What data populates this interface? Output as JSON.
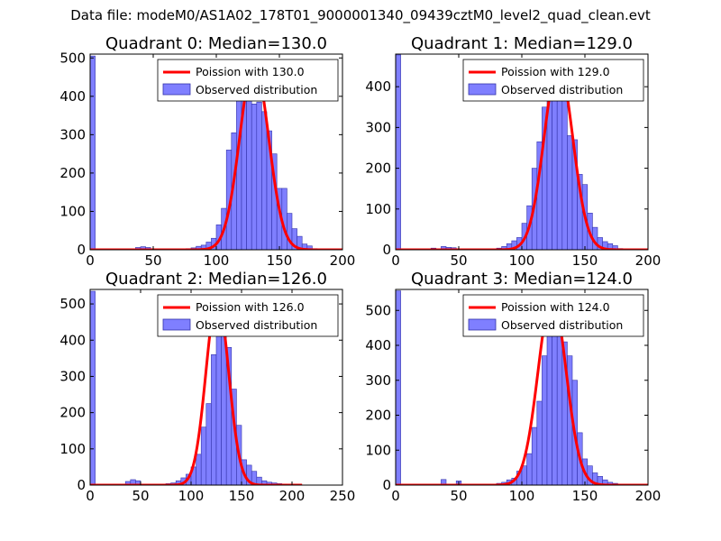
{
  "figure": {
    "suptitle": "Data file: modeM0/AS1A02_178T01_9000001340_09439cztM0_level2_quad_clean.evt",
    "colors": {
      "hist_fill": "#7f7fff",
      "hist_edge": "#3333aa",
      "poisson_line": "#ff0000"
    }
  },
  "chart_data": [
    {
      "type": "bar",
      "title": "Quadrant 0: Median=130.0",
      "median": 130.0,
      "legend": {
        "line_label": "Poission with 130.0",
        "bar_label": "Observed distribution",
        "placement": "top-right"
      },
      "xlim": [
        0,
        200
      ],
      "ylim": [
        0,
        510
      ],
      "xticks": [
        0,
        50,
        100,
        150,
        200
      ],
      "yticks": [
        0,
        100,
        200,
        300,
        400,
        500
      ],
      "bin_width": 4,
      "bins": [
        [
          0,
          505
        ],
        [
          36,
          6
        ],
        [
          40,
          8
        ],
        [
          44,
          6
        ],
        [
          76,
          3
        ],
        [
          80,
          5
        ],
        [
          84,
          9
        ],
        [
          88,
          12
        ],
        [
          92,
          20
        ],
        [
          96,
          30
        ],
        [
          100,
          65
        ],
        [
          104,
          108
        ],
        [
          108,
          260
        ],
        [
          112,
          305
        ],
        [
          116,
          420
        ],
        [
          120,
          460
        ],
        [
          124,
          480
        ],
        [
          128,
          380
        ],
        [
          132,
          385
        ],
        [
          136,
          360
        ],
        [
          140,
          310
        ],
        [
          144,
          250
        ],
        [
          148,
          160
        ],
        [
          152,
          160
        ],
        [
          156,
          95
        ],
        [
          160,
          55
        ],
        [
          164,
          35
        ],
        [
          168,
          15
        ],
        [
          172,
          10
        ],
        [
          176,
          3
        ]
      ],
      "poisson": {
        "mean": 130.0,
        "peak": 487,
        "x": [
          0,
          200
        ]
      }
    },
    {
      "type": "bar",
      "title": "Quadrant 1: Median=129.0",
      "median": 129.0,
      "legend": {
        "line_label": "Poission with 129.0",
        "bar_label": "Observed distribution",
        "placement": "top-right"
      },
      "xlim": [
        0,
        200
      ],
      "ylim": [
        0,
        480
      ],
      "xticks": [
        0,
        50,
        100,
        150,
        200
      ],
      "yticks": [
        0,
        100,
        200,
        300,
        400
      ],
      "bin_width": 4,
      "bins": [
        [
          0,
          478
        ],
        [
          28,
          4
        ],
        [
          36,
          8
        ],
        [
          40,
          6
        ],
        [
          44,
          5
        ],
        [
          76,
          2
        ],
        [
          80,
          4
        ],
        [
          84,
          8
        ],
        [
          88,
          15
        ],
        [
          92,
          22
        ],
        [
          96,
          30
        ],
        [
          100,
          65
        ],
        [
          104,
          108
        ],
        [
          108,
          200
        ],
        [
          112,
          265
        ],
        [
          116,
          350
        ],
        [
          120,
          400
        ],
        [
          124,
          440
        ],
        [
          128,
          455
        ],
        [
          132,
          380
        ],
        [
          136,
          280
        ],
        [
          140,
          270
        ],
        [
          144,
          185
        ],
        [
          148,
          160
        ],
        [
          152,
          90
        ],
        [
          156,
          55
        ],
        [
          160,
          30
        ],
        [
          164,
          20
        ],
        [
          168,
          15
        ],
        [
          172,
          10
        ],
        [
          176,
          3
        ]
      ],
      "poisson": {
        "mean": 129.0,
        "peak": 455,
        "x": [
          0,
          200
        ]
      }
    },
    {
      "type": "bar",
      "title": "Quadrant 2: Median=126.0",
      "median": 126.0,
      "legend": {
        "line_label": "Poission with 126.0",
        "bar_label": "Observed distribution",
        "placement": "top-right"
      },
      "xlim": [
        0,
        250
      ],
      "ylim": [
        0,
        540
      ],
      "xticks": [
        0,
        50,
        100,
        150,
        200,
        250
      ],
      "yticks": [
        0,
        100,
        200,
        300,
        400,
        500
      ],
      "bin_width": 5,
      "bins": [
        [
          0,
          535
        ],
        [
          35,
          10
        ],
        [
          40,
          15
        ],
        [
          45,
          12
        ],
        [
          70,
          3
        ],
        [
          75,
          4
        ],
        [
          80,
          6
        ],
        [
          85,
          12
        ],
        [
          90,
          20
        ],
        [
          95,
          30
        ],
        [
          100,
          50
        ],
        [
          105,
          85
        ],
        [
          110,
          160
        ],
        [
          115,
          225
        ],
        [
          120,
          360
        ],
        [
          125,
          500
        ],
        [
          130,
          450
        ],
        [
          135,
          380
        ],
        [
          140,
          265
        ],
        [
          145,
          165
        ],
        [
          150,
          70
        ],
        [
          155,
          55
        ],
        [
          160,
          38
        ],
        [
          165,
          22
        ],
        [
          170,
          12
        ],
        [
          175,
          8
        ],
        [
          180,
          6
        ],
        [
          185,
          4
        ],
        [
          190,
          3
        ],
        [
          195,
          2
        ]
      ],
      "poisson": {
        "mean": 126.0,
        "peak": 517,
        "x": [
          0,
          210
        ]
      }
    },
    {
      "type": "bar",
      "title": "Quadrant 3: Median=124.0",
      "median": 124.0,
      "legend": {
        "line_label": "Poission with 124.0",
        "bar_label": "Observed distribution",
        "placement": "top-right"
      },
      "xlim": [
        0,
        200
      ],
      "ylim": [
        0,
        560
      ],
      "xticks": [
        0,
        50,
        100,
        150,
        200
      ],
      "yticks": [
        0,
        100,
        200,
        300,
        400,
        500
      ],
      "bin_width": 4,
      "bins": [
        [
          0,
          556
        ],
        [
          36,
          16
        ],
        [
          48,
          12
        ],
        [
          76,
          3
        ],
        [
          80,
          5
        ],
        [
          84,
          8
        ],
        [
          88,
          15
        ],
        [
          92,
          20
        ],
        [
          96,
          40
        ],
        [
          100,
          55
        ],
        [
          104,
          90
        ],
        [
          108,
          165
        ],
        [
          112,
          240
        ],
        [
          116,
          370
        ],
        [
          120,
          460
        ],
        [
          124,
          540
        ],
        [
          128,
          500
        ],
        [
          132,
          410
        ],
        [
          136,
          370
        ],
        [
          140,
          300
        ],
        [
          144,
          150
        ],
        [
          148,
          75
        ],
        [
          152,
          55
        ],
        [
          156,
          35
        ],
        [
          160,
          25
        ],
        [
          164,
          15
        ],
        [
          168,
          8
        ],
        [
          172,
          5
        ],
        [
          176,
          3
        ]
      ],
      "poisson": {
        "mean": 124.0,
        "peak": 538,
        "x": [
          0,
          200
        ]
      }
    }
  ]
}
